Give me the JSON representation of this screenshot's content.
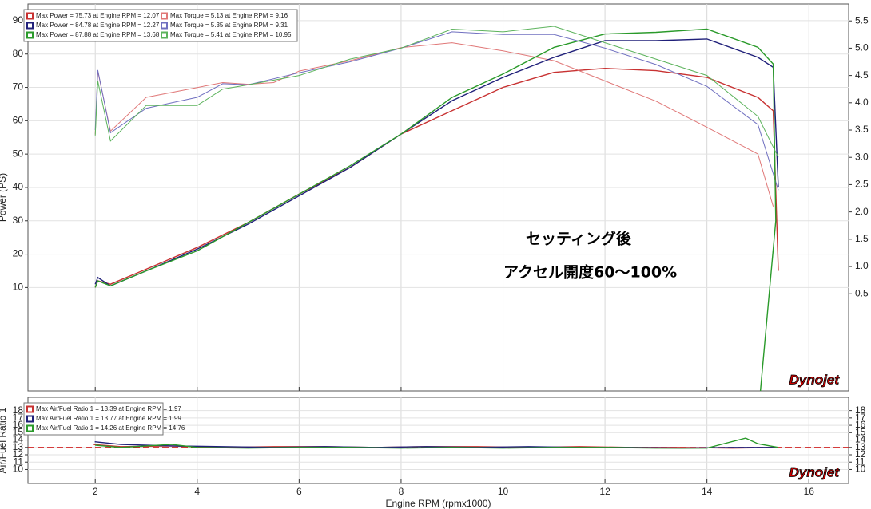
{
  "chart_data": [
    {
      "type": "line",
      "y_label": "Power (PS)",
      "annotations": [
        "セッティング後",
        "アクセル開度60～100%"
      ],
      "logo": "Dynojet",
      "xlim": [
        0.68,
        16.78
      ],
      "ylim": [
        -21,
        95
      ],
      "yticks": [
        10,
        20,
        30,
        40,
        50,
        60,
        70,
        80,
        90
      ],
      "y2lim": [
        -1.28,
        5.81
      ],
      "y2ticks": [
        0.5,
        {
          "value": 1.0,
          "label": "1.0"
        },
        1.5,
        {
          "value": 2.0,
          "label": "2.0"
        },
        2.5,
        {
          "value": 3.0,
          "label": "3.0"
        },
        3.5,
        {
          "value": 4.0,
          "label": "4.0"
        },
        4.5,
        {
          "value": 5.0,
          "label": "5.0"
        },
        5.5
      ],
      "grid": true,
      "series": [
        {
          "name": "Max Power = 75.73 at Engine RPM = 12.07",
          "color": "#c83232",
          "x": [
            2.0,
            2.05,
            2.3,
            3,
            4,
            5,
            6,
            7,
            8,
            9,
            10,
            11,
            12,
            13,
            14,
            15,
            15.3,
            15.4
          ],
          "values": [
            10,
            12,
            11,
            15.5,
            22,
            29.5,
            38,
            46,
            56,
            63,
            70,
            74.5,
            75.7,
            75,
            73,
            67,
            63,
            15
          ]
        },
        {
          "name": "Max Torque = 5.13 at Engine RPM = 9.16",
          "color": "#e07878",
          "axis": "y2",
          "x": [
            2.0,
            2.05,
            2.3,
            3,
            4,
            4.5,
            5,
            5.5,
            6,
            7,
            8,
            9,
            10,
            11,
            12,
            13,
            14,
            15,
            15.3
          ],
          "values": [
            3.42,
            4.58,
            3.48,
            4.1,
            4.28,
            4.37,
            4.34,
            4.37,
            4.58,
            4.77,
            5.01,
            5.1,
            4.95,
            4.77,
            4.4,
            4.03,
            3.55,
            3.06,
            2.1
          ]
        },
        {
          "name": "Max Power = 84.78 at Engine RPM = 12.27",
          "color": "#20207a",
          "x": [
            2.0,
            2.05,
            2.3,
            3,
            4,
            5,
            6,
            7,
            8,
            9,
            10,
            11,
            12,
            13,
            14,
            15,
            15.3,
            15.4
          ],
          "values": [
            11,
            13,
            10.5,
            15,
            21.5,
            29,
            37.5,
            46,
            56,
            66,
            73,
            79,
            84,
            84,
            84.5,
            79,
            76,
            40
          ]
        },
        {
          "name": "Max Torque = 5.35 at Engine RPM = 9.31",
          "color": "#7070c0",
          "axis": "y2",
          "x": [
            2.0,
            2.05,
            2.3,
            3,
            4,
            4.5,
            5,
            6,
            7,
            8,
            9,
            10,
            11,
            12,
            13,
            14,
            15,
            15.4
          ],
          "values": [
            3.5,
            4.6,
            3.45,
            3.9,
            4.1,
            4.35,
            4.33,
            4.55,
            4.75,
            5.0,
            5.3,
            5.25,
            5.25,
            5.0,
            4.7,
            4.3,
            3.6,
            2.4
          ]
        },
        {
          "name": "Max Power = 87.88 at Engine RPM = 13.68",
          "color": "#2a9a2a",
          "x": [
            2.0,
            2.05,
            2.3,
            3,
            4,
            5,
            6,
            7,
            8,
            9,
            10,
            11,
            12,
            13,
            14,
            15,
            15.3,
            15.35,
            15.05
          ],
          "values": [
            10,
            12,
            10.5,
            15,
            21,
            29.5,
            38,
            46.5,
            56,
            67,
            74,
            82,
            86,
            86.5,
            87.5,
            82,
            77,
            30,
            -21
          ]
        },
        {
          "name": "Max Torque = 5.41 at Engine RPM = 10.95",
          "color": "#5cb35c",
          "axis": "y2",
          "x": [
            2.0,
            2.05,
            2.3,
            3,
            4,
            4.5,
            5,
            6,
            7,
            8,
            9,
            10,
            11,
            12,
            13,
            14,
            15,
            15.4
          ],
          "values": [
            3.4,
            4.4,
            3.3,
            3.95,
            3.95,
            4.25,
            4.33,
            4.5,
            4.8,
            5.0,
            5.35,
            5.3,
            5.4,
            5.1,
            4.8,
            4.5,
            3.75,
            3.0
          ]
        }
      ]
    },
    {
      "type": "line",
      "x_label": "Engine RPM (rpmx1000)",
      "y_label": "Air/Fuel Ratio 1",
      "logo": "Dynojet",
      "xlim": [
        0.68,
        16.78
      ],
      "xticks": [
        2,
        4,
        6,
        8,
        10,
        12,
        14,
        16
      ],
      "ylim": [
        8.1,
        19.8
      ],
      "yticks": [
        10,
        11,
        12,
        13,
        14,
        15,
        16,
        17,
        18
      ],
      "y2lim": [
        8.1,
        19.8
      ],
      "y2ticks": [
        10,
        11,
        12,
        13,
        14,
        15,
        16,
        17,
        18
      ],
      "reference_line": 13,
      "grid": true,
      "series": [
        {
          "name": "Max Air/Fuel Ratio 1 = 13.39 at Engine RPM = 1.97",
          "color": "#c83232",
          "x": [
            1.97,
            2.5,
            3.5,
            4.5,
            5.5,
            6.5,
            7.5,
            8.5,
            9.5,
            10.5,
            11.5,
            12.5,
            13.5,
            14.5,
            15.4
          ],
          "values": [
            13.39,
            13.1,
            13.2,
            13.0,
            13.1,
            13.1,
            13.0,
            13.1,
            13.1,
            13.0,
            13.1,
            13.0,
            13.0,
            12.9,
            13.0
          ]
        },
        {
          "name": "Max Air/Fuel Ratio 1 = 13.77 at Engine RPM = 1.99",
          "color": "#20207a",
          "x": [
            1.99,
            2.5,
            3.5,
            4.5,
            5.5,
            6.5,
            7.5,
            8.5,
            9.5,
            10.5,
            11.5,
            12.5,
            13.5,
            14.5,
            15.4
          ],
          "values": [
            13.77,
            13.4,
            13.2,
            13.1,
            13.0,
            13.1,
            13.0,
            13.1,
            13.0,
            13.1,
            13.0,
            13.0,
            12.9,
            13.0,
            13.0
          ]
        },
        {
          "name": "Max Air/Fuel Ratio 1 = 14.26 at Engine RPM = 14.76",
          "color": "#2a9a2a",
          "x": [
            2.0,
            2.5,
            3.5,
            4.0,
            5.0,
            6.0,
            7.0,
            8.0,
            9.0,
            10.0,
            11.0,
            12.0,
            13.0,
            14.0,
            14.76,
            15.0,
            15.4
          ],
          "values": [
            13.3,
            13.0,
            13.4,
            13.0,
            12.9,
            13.0,
            13.0,
            12.9,
            13.0,
            12.9,
            13.0,
            13.0,
            12.9,
            12.9,
            14.26,
            13.5,
            13.0
          ]
        }
      ]
    }
  ]
}
